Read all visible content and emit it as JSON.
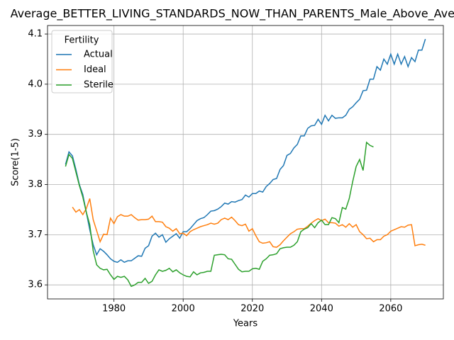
{
  "chart_data": {
    "type": "line",
    "title": "Average_BETTER_LIVING_STANDARDS_NOW_THAN_PARENTS_Male_Above_Average",
    "xlabel": "Years",
    "ylabel": "Score(1-5)",
    "legend_title": "Fertility",
    "legend": "upper left",
    "grid": true,
    "x": [
      1966,
      1967,
      1968,
      1969,
      1970,
      1971,
      1972,
      1973,
      1974,
      1975,
      1976,
      1977,
      1978,
      1979,
      1980,
      1981,
      1982,
      1983,
      1984,
      1985,
      1986,
      1987,
      1988,
      1989,
      1990,
      1991,
      1992,
      1993,
      1994,
      1995,
      1996,
      1997,
      1998,
      1999,
      2000,
      2001,
      2002,
      2003,
      2004,
      2005,
      2006,
      2007,
      2008,
      2009,
      2010,
      2011,
      2012,
      2013,
      2014,
      2015,
      2016,
      2017,
      2018,
      2019,
      2020,
      2021,
      2022,
      2023,
      2024,
      2025,
      2026,
      2027,
      2028,
      2029,
      2030,
      2031,
      2032,
      2033,
      2034,
      2035,
      2036,
      2037,
      2038,
      2039,
      2040,
      2041,
      2042,
      2043,
      2044,
      2045,
      2046,
      2047,
      2048,
      2049,
      2050,
      2051,
      2052,
      2053,
      2054,
      2055,
      2056,
      2057,
      2058,
      2059,
      2060,
      2061,
      2062,
      2063,
      2064,
      2065,
      2066,
      2067,
      2068,
      2069,
      2070
    ],
    "series": [
      {
        "name": "Actual",
        "color": "#1f77b4",
        "values": [
          3.84,
          3.865,
          3.857,
          3.83,
          3.8,
          3.78,
          3.745,
          3.71,
          3.68,
          3.66,
          3.672,
          3.667,
          3.66,
          3.652,
          3.647,
          3.645,
          3.65,
          3.645,
          3.648,
          3.648,
          3.653,
          3.658,
          3.657,
          3.673,
          3.678,
          3.697,
          3.703,
          3.695,
          3.7,
          3.685,
          3.692,
          3.697,
          3.702,
          3.693,
          3.706,
          3.706,
          3.712,
          3.72,
          3.728,
          3.732,
          3.734,
          3.74,
          3.747,
          3.748,
          3.751,
          3.756,
          3.763,
          3.761,
          3.766,
          3.765,
          3.768,
          3.77,
          3.779,
          3.775,
          3.782,
          3.782,
          3.787,
          3.785,
          3.796,
          3.802,
          3.81,
          3.812,
          3.83,
          3.838,
          3.858,
          3.862,
          3.873,
          3.88,
          3.897,
          3.897,
          3.912,
          3.917,
          3.918,
          3.93,
          3.92,
          3.938,
          3.927,
          3.938,
          3.932,
          3.933,
          3.933,
          3.938,
          3.95,
          3.955,
          3.963,
          3.97,
          3.987,
          3.988,
          4.01,
          4.01,
          4.035,
          4.028,
          4.05,
          4.04,
          4.06,
          4.04,
          4.06,
          4.04,
          4.055,
          4.035,
          4.053,
          4.045,
          4.068,
          4.068,
          4.09
        ]
      },
      {
        "name": "Ideal",
        "color": "#ff7f0e",
        "values": [
          null,
          null,
          3.755,
          3.745,
          3.75,
          3.74,
          3.752,
          3.772,
          3.73,
          3.708,
          3.686,
          3.701,
          3.7,
          3.733,
          3.722,
          3.736,
          3.74,
          3.737,
          3.737,
          3.74,
          3.734,
          3.729,
          3.73,
          3.73,
          3.731,
          3.737,
          3.726,
          3.726,
          3.725,
          3.716,
          3.713,
          3.707,
          3.712,
          3.702,
          3.703,
          3.698,
          3.706,
          3.71,
          3.713,
          3.716,
          3.718,
          3.72,
          3.723,
          3.721,
          3.723,
          3.73,
          3.733,
          3.73,
          3.735,
          3.728,
          3.72,
          3.718,
          3.721,
          3.707,
          3.712,
          3.698,
          3.686,
          3.683,
          3.684,
          3.686,
          3.676,
          3.675,
          3.68,
          3.688,
          3.695,
          3.702,
          3.706,
          3.711,
          3.712,
          3.712,
          3.717,
          3.723,
          3.728,
          3.732,
          3.728,
          3.731,
          3.724,
          3.724,
          3.723,
          3.717,
          3.72,
          3.715,
          3.722,
          3.715,
          3.72,
          3.706,
          3.7,
          3.692,
          3.693,
          3.686,
          3.69,
          3.69,
          3.697,
          3.7,
          3.707,
          3.71,
          3.713,
          3.716,
          3.715,
          3.719,
          3.72,
          3.678,
          3.68,
          3.681,
          3.679
        ]
      },
      {
        "name": "Sterile",
        "color": "#2ca02c",
        "values": [
          3.836,
          3.86,
          3.852,
          3.825,
          3.798,
          3.775,
          3.745,
          3.72,
          3.668,
          3.64,
          3.633,
          3.63,
          3.631,
          3.62,
          3.611,
          3.617,
          3.615,
          3.617,
          3.61,
          3.597,
          3.6,
          3.605,
          3.605,
          3.613,
          3.603,
          3.607,
          3.62,
          3.63,
          3.627,
          3.629,
          3.633,
          3.626,
          3.63,
          3.624,
          3.62,
          3.617,
          3.616,
          3.626,
          3.62,
          3.624,
          3.625,
          3.627,
          3.627,
          3.659,
          3.66,
          3.661,
          3.66,
          3.652,
          3.651,
          3.641,
          3.631,
          3.626,
          3.627,
          3.627,
          3.632,
          3.633,
          3.631,
          3.647,
          3.652,
          3.659,
          3.66,
          3.662,
          3.672,
          3.674,
          3.675,
          3.675,
          3.679,
          3.686,
          3.706,
          3.711,
          3.714,
          3.722,
          3.714,
          3.724,
          3.729,
          3.72,
          3.72,
          3.734,
          3.732,
          3.724,
          3.754,
          3.751,
          3.772,
          3.806,
          3.836,
          3.85,
          3.828,
          3.884,
          3.878,
          3.875,
          null,
          null,
          null,
          null,
          null,
          null,
          null,
          null,
          null,
          null,
          null,
          null,
          null,
          null,
          null
        ]
      }
    ],
    "xlim": [
      1960.8,
      2075.2
    ],
    "xticks": [
      1980,
      2000,
      2020,
      2040,
      2060
    ],
    "ylim": [
      3.572,
      4.117
    ],
    "yticks": [
      3.6,
      3.7,
      3.8,
      3.9,
      {
        "value": 4,
        "label": "4.0"
      },
      4.1
    ]
  }
}
